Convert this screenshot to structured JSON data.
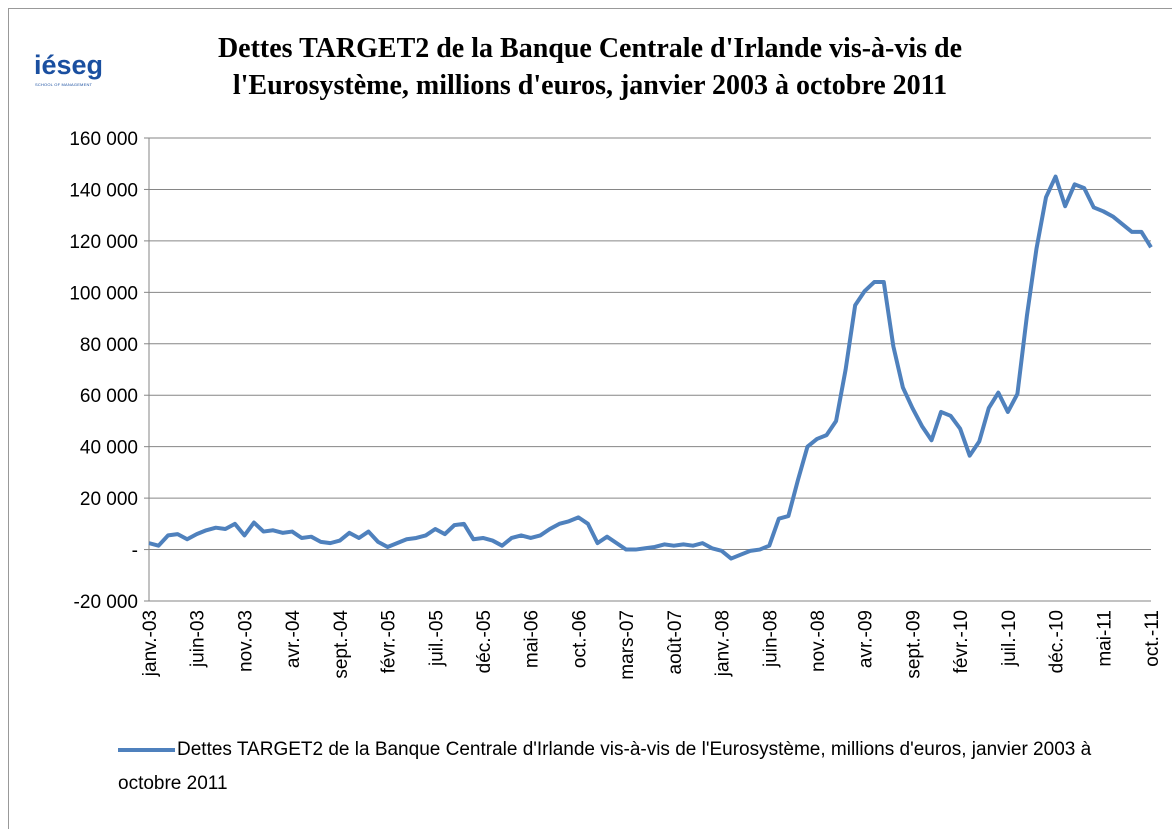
{
  "logo": {
    "name": "iéseg",
    "tagline": "SCHOOL OF MANAGEMENT"
  },
  "chart_data": {
    "type": "line",
    "title": "Dettes TARGET2 de la Banque Centrale d'Irlande vis-à-vis de l'Eurosystème, millions d'euros, janvier 2003  à octobre 2011",
    "categories": [
      "janv.-03",
      null,
      null,
      null,
      null,
      "juin-03",
      null,
      null,
      null,
      null,
      "nov.-03",
      null,
      null,
      null,
      null,
      "avr.-04",
      null,
      null,
      null,
      null,
      "sept.-04",
      null,
      null,
      null,
      null,
      "févr.-05",
      null,
      null,
      null,
      null,
      "juil.-05",
      null,
      null,
      null,
      null,
      "déc.-05",
      null,
      null,
      null,
      null,
      "mai-06",
      null,
      null,
      null,
      null,
      "oct.-06",
      null,
      null,
      null,
      null,
      "mars-07",
      null,
      null,
      null,
      null,
      "août-07",
      null,
      null,
      null,
      null,
      "janv.-08",
      null,
      null,
      null,
      null,
      "juin-08",
      null,
      null,
      null,
      null,
      "nov.-08",
      null,
      null,
      null,
      null,
      "avr.-09",
      null,
      null,
      null,
      null,
      "sept.-09",
      null,
      null,
      null,
      null,
      "févr.-10",
      null,
      null,
      null,
      null,
      "juil.-10",
      null,
      null,
      null,
      null,
      "déc.-10",
      null,
      null,
      null,
      null,
      "mai-11",
      null,
      null,
      null,
      null,
      "oct.-11"
    ],
    "series": [
      {
        "name": "Dettes TARGET2 de la Banque Centrale d'Irlande vis-à-vis de l'Eurosystème, millions d'euros, janvier 2003  à octobre 2011",
        "color": "#4f81bd",
        "values": [
          2500,
          1500,
          5500,
          6000,
          4000,
          6000,
          7500,
          8500,
          8000,
          10000,
          5500,
          10500,
          7000,
          7500,
          6500,
          7000,
          4500,
          5000,
          3000,
          2500,
          3500,
          6500,
          4500,
          7000,
          3000,
          1000,
          2500,
          4000,
          4500,
          5500,
          8000,
          6000,
          9500,
          10000,
          4000,
          4500,
          3500,
          1500,
          4500,
          5500,
          4500,
          5500,
          8000,
          10000,
          11000,
          12500,
          10000,
          2500,
          5000,
          2500,
          0,
          0,
          500,
          1000,
          2000,
          1500,
          2000,
          1500,
          2500,
          500,
          -500,
          -3500,
          -2000,
          -500,
          0,
          1500,
          12000,
          13000,
          27000,
          40000,
          43000,
          44500,
          50000,
          70000,
          95000,
          100500,
          104000,
          104000,
          79000,
          63000,
          55000,
          48000,
          42500,
          53500,
          52000,
          47000,
          36500,
          42000,
          55000,
          61000,
          53500,
          60500,
          91000,
          117000,
          137000,
          145000,
          133500,
          142000,
          140500,
          133000,
          131500,
          129500,
          126500,
          123500,
          123500,
          117500
        ]
      }
    ],
    "ylim": [
      -20000,
      160000
    ],
    "yticks": [
      {
        "value": -20000,
        "label": "-20 000"
      },
      {
        "value": 0,
        "label": "-"
      },
      {
        "value": 20000,
        "label": "20 000"
      },
      {
        "value": 40000,
        "label": "40 000"
      },
      {
        "value": 60000,
        "label": "60 000"
      },
      {
        "value": 80000,
        "label": "80 000"
      },
      {
        "value": 100000,
        "label": "100 000"
      },
      {
        "value": 120000,
        "label": "120 000"
      },
      {
        "value": 140000,
        "label": "140 000"
      },
      {
        "value": 160000,
        "label": "160 000"
      }
    ],
    "grid": true,
    "legend": "bottom"
  }
}
